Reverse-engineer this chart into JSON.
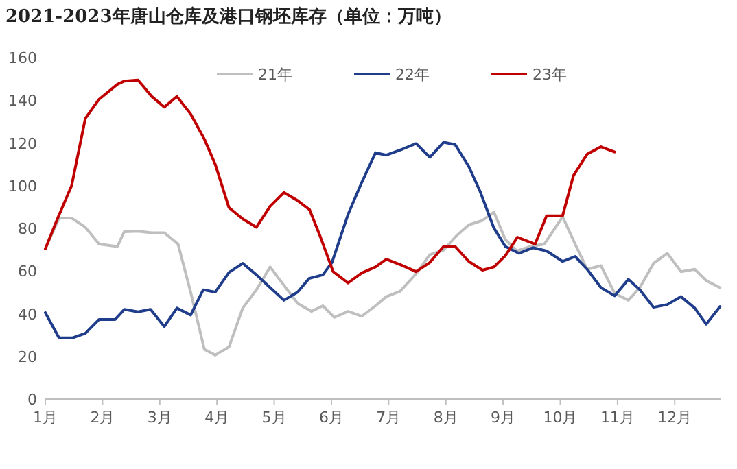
{
  "chart_data": {
    "type": "line",
    "title": "2021-2023年唐山仓库及港口钢坯库存（单位：万吨）",
    "xlim": [
      1,
      12.8
    ],
    "xticks": [
      {
        "value": 1,
        "label": "1月"
      },
      {
        "value": 2,
        "label": "2月"
      },
      {
        "value": 3,
        "label": "3月"
      },
      {
        "value": 4,
        "label": "4月"
      },
      {
        "value": 5,
        "label": "5月"
      },
      {
        "value": 6,
        "label": "6月"
      },
      {
        "value": 7,
        "label": "7月"
      },
      {
        "value": 8,
        "label": "8月"
      },
      {
        "value": 9,
        "label": "9月"
      },
      {
        "value": 10,
        "label": "10月"
      },
      {
        "value": 11,
        "label": "11月"
      },
      {
        "value": 12,
        "label": "12月"
      }
    ],
    "ylim": [
      0,
      160
    ],
    "yticks": [
      0,
      20,
      40,
      60,
      80,
      100,
      120,
      140,
      160
    ],
    "grid": false,
    "legend": "top",
    "marker": "none",
    "line_style": "solid",
    "series": [
      {
        "name": "21年",
        "color": "#bfbfbf",
        "x": [
          1.0,
          1.24,
          1.46,
          1.7,
          1.94,
          2.26,
          2.38,
          2.62,
          2.86,
          3.08,
          3.32,
          3.54,
          3.78,
          3.97,
          4.21,
          4.45,
          4.69,
          4.93,
          5.17,
          5.41,
          5.65,
          5.85,
          6.05,
          6.29,
          6.53,
          6.77,
          6.96,
          7.2,
          7.48,
          7.72,
          7.96,
          8.2,
          8.4,
          8.64,
          8.84,
          9.04,
          9.24,
          9.48,
          9.72,
          10.04,
          10.26,
          10.47,
          10.71,
          10.95,
          11.19,
          11.39,
          11.63,
          11.87,
          12.11,
          12.35,
          12.55,
          12.79
        ],
        "values": [
          70.4,
          84.8,
          84.8,
          80.5,
          72.6,
          71.5,
          78.4,
          78.6,
          77.9,
          77.9,
          72.6,
          50.1,
          23.3,
          20.6,
          24.4,
          42.6,
          51.2,
          61.9,
          53.3,
          44.8,
          41.1,
          43.7,
          38.3,
          41.1,
          38.8,
          43.7,
          48,
          50.5,
          58.7,
          67.7,
          69.8,
          76.9,
          81.6,
          83.7,
          87.6,
          74.7,
          69.4,
          71.5,
          72.6,
          85.4,
          72.6,
          60.8,
          62.5,
          49.5,
          46.3,
          52.2,
          63.6,
          68.3,
          59.7,
          60.8,
          55.5,
          52.2
        ]
      },
      {
        "name": "22年",
        "color": "#1f3d8a",
        "x": [
          1.0,
          1.24,
          1.48,
          1.7,
          1.94,
          2.22,
          2.38,
          2.62,
          2.84,
          3.08,
          3.3,
          3.54,
          3.76,
          3.97,
          4.21,
          4.45,
          4.69,
          4.93,
          5.17,
          5.41,
          5.61,
          5.85,
          6.01,
          6.29,
          6.53,
          6.77,
          6.96,
          7.24,
          7.48,
          7.72,
          7.96,
          8.16,
          8.4,
          8.6,
          8.84,
          9.04,
          9.28,
          9.52,
          9.76,
          10.04,
          10.26,
          10.47,
          10.71,
          10.95,
          11.19,
          11.39,
          11.63,
          11.87,
          12.11,
          12.35,
          12.55,
          12.79
        ],
        "values": [
          40.5,
          28.7,
          28.7,
          30.8,
          37.3,
          37.3,
          42,
          40.9,
          42,
          34,
          42.6,
          39.4,
          51.2,
          50.1,
          59.3,
          63.6,
          58.2,
          52.2,
          46.3,
          50.1,
          56.5,
          58.2,
          64,
          86.5,
          101.5,
          115.4,
          114.3,
          117.1,
          119.7,
          113.3,
          120.3,
          119.3,
          109,
          97.2,
          80.1,
          71.5,
          68.3,
          70.9,
          69.4,
          64.5,
          66.8,
          60.8,
          52.2,
          48.4,
          56.1,
          51.2,
          43,
          44.3,
          48,
          42.6,
          35.1,
          43.3
        ]
      },
      {
        "name": "23年",
        "color": "#c00000",
        "x": [
          1.0,
          1.22,
          1.46,
          1.7,
          1.94,
          2.26,
          2.38,
          2.62,
          2.86,
          3.08,
          3.3,
          3.54,
          3.78,
          3.97,
          4.21,
          4.45,
          4.69,
          4.93,
          5.17,
          5.41,
          5.62,
          5.81,
          6.03,
          6.29,
          6.53,
          6.77,
          6.96,
          7.2,
          7.48,
          7.72,
          7.96,
          8.16,
          8.4,
          8.64,
          8.84,
          9.04,
          9.25,
          9.56,
          9.76,
          10.04,
          10.23,
          10.47,
          10.71,
          10.95
        ],
        "values": [
          70.4,
          85,
          100,
          131.5,
          140.5,
          147.5,
          149,
          149.5,
          141.8,
          136.8,
          141.8,
          133.6,
          121.8,
          110,
          89.7,
          84.4,
          80.5,
          90.4,
          96.8,
          93,
          88.7,
          75.8,
          59.7,
          54.4,
          59.1,
          61.9,
          65.5,
          63,
          59.7,
          64,
          71.5,
          71.5,
          64.5,
          60.4,
          61.9,
          67.2,
          75.8,
          72.6,
          85.9,
          85.9,
          104.7,
          114.8,
          118.2,
          115.8
        ]
      }
    ]
  }
}
